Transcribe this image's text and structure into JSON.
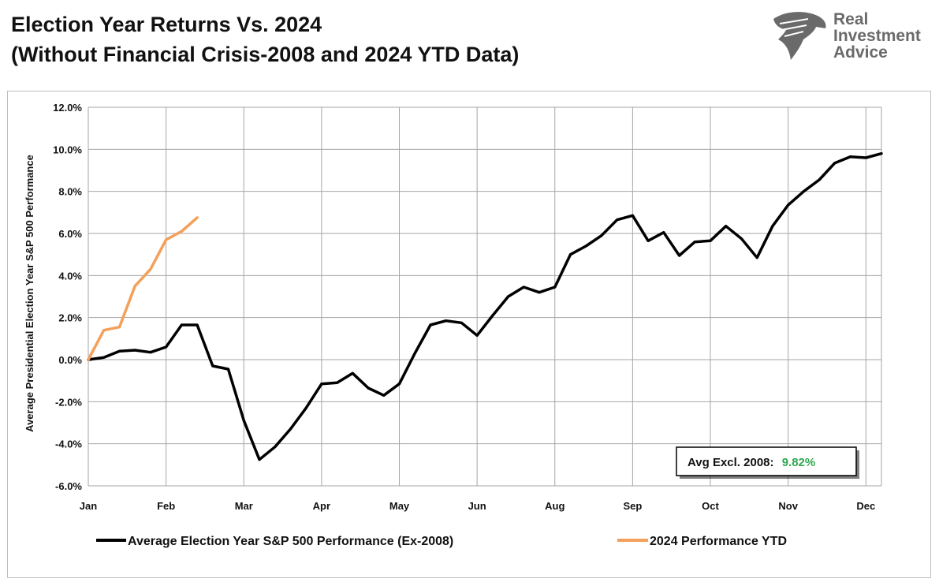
{
  "header": {
    "title_line1": "Election Year Returns Vs. 2024",
    "title_line2": "(Without Financial Crisis-2008 and 2024 YTD Data)"
  },
  "logo": {
    "line1": "Real",
    "line2": "Investment",
    "line3": "Advice",
    "color": "#6a6a6a"
  },
  "annotation": {
    "label": "Avg Excl. 2008:",
    "value": "9.82%",
    "value_color": "#2fa84f"
  },
  "chart_data": {
    "type": "line",
    "ylabel": "Average Presidential Election Year S&P 500 Performance",
    "xlabel": "",
    "ylim": [
      -6,
      12
    ],
    "yticks": [
      -6,
      -4,
      -2,
      0,
      2,
      4,
      6,
      8,
      10,
      12
    ],
    "ytick_labels": [
      "-6.0%",
      "-4.0%",
      "-2.0%",
      "0.0%",
      "2.0%",
      "4.0%",
      "6.0%",
      "8.0%",
      "10.0%",
      "12.0%"
    ],
    "xlim": [
      0,
      51
    ],
    "xticks": [
      0,
      5,
      10,
      15,
      20,
      25,
      30,
      35,
      40,
      45,
      50
    ],
    "xtick_labels": [
      "Jan",
      "Feb",
      "Mar",
      "Apr",
      "May",
      "Jun",
      "Aug",
      "Sep",
      "Oct",
      "Nov",
      "Dec"
    ],
    "grid": true,
    "legend_position": "bottom",
    "series": [
      {
        "name": "Average Election Year S&P 500 Performance (Ex-2008)",
        "color": "#000000",
        "x": [
          0,
          1,
          2,
          3,
          4,
          5,
          6,
          7,
          8,
          9,
          10,
          11,
          12,
          13,
          14,
          15,
          16,
          17,
          18,
          19,
          20,
          21,
          22,
          23,
          24,
          25,
          26,
          27,
          28,
          29,
          30,
          31,
          32,
          33,
          34,
          35,
          36,
          37,
          38,
          39,
          40,
          41,
          42,
          43,
          44,
          45,
          46,
          47,
          48,
          49,
          50,
          51
        ],
        "values": [
          0.0,
          0.1,
          0.4,
          0.45,
          0.35,
          0.6,
          1.65,
          1.65,
          -0.3,
          -0.45,
          -2.9,
          -4.75,
          -4.15,
          -3.3,
          -2.3,
          -1.15,
          -1.1,
          -0.65,
          -1.35,
          -1.7,
          -1.15,
          0.3,
          1.65,
          1.85,
          1.75,
          1.15,
          2.1,
          3.0,
          3.45,
          3.2,
          3.45,
          5.0,
          5.4,
          5.9,
          6.65,
          6.85,
          5.65,
          6.05,
          4.95,
          5.6,
          5.65,
          6.35,
          5.75,
          4.85,
          6.35,
          7.35,
          8.0,
          8.55,
          9.35,
          9.65,
          9.6,
          9.8
        ]
      },
      {
        "name": "2024 Performance YTD",
        "color": "#f4a05a",
        "x": [
          0,
          1,
          2,
          3,
          4,
          5,
          6,
          7
        ],
        "values": [
          0.0,
          1.4,
          1.55,
          3.5,
          4.3,
          5.7,
          6.1,
          6.75
        ]
      }
    ]
  }
}
